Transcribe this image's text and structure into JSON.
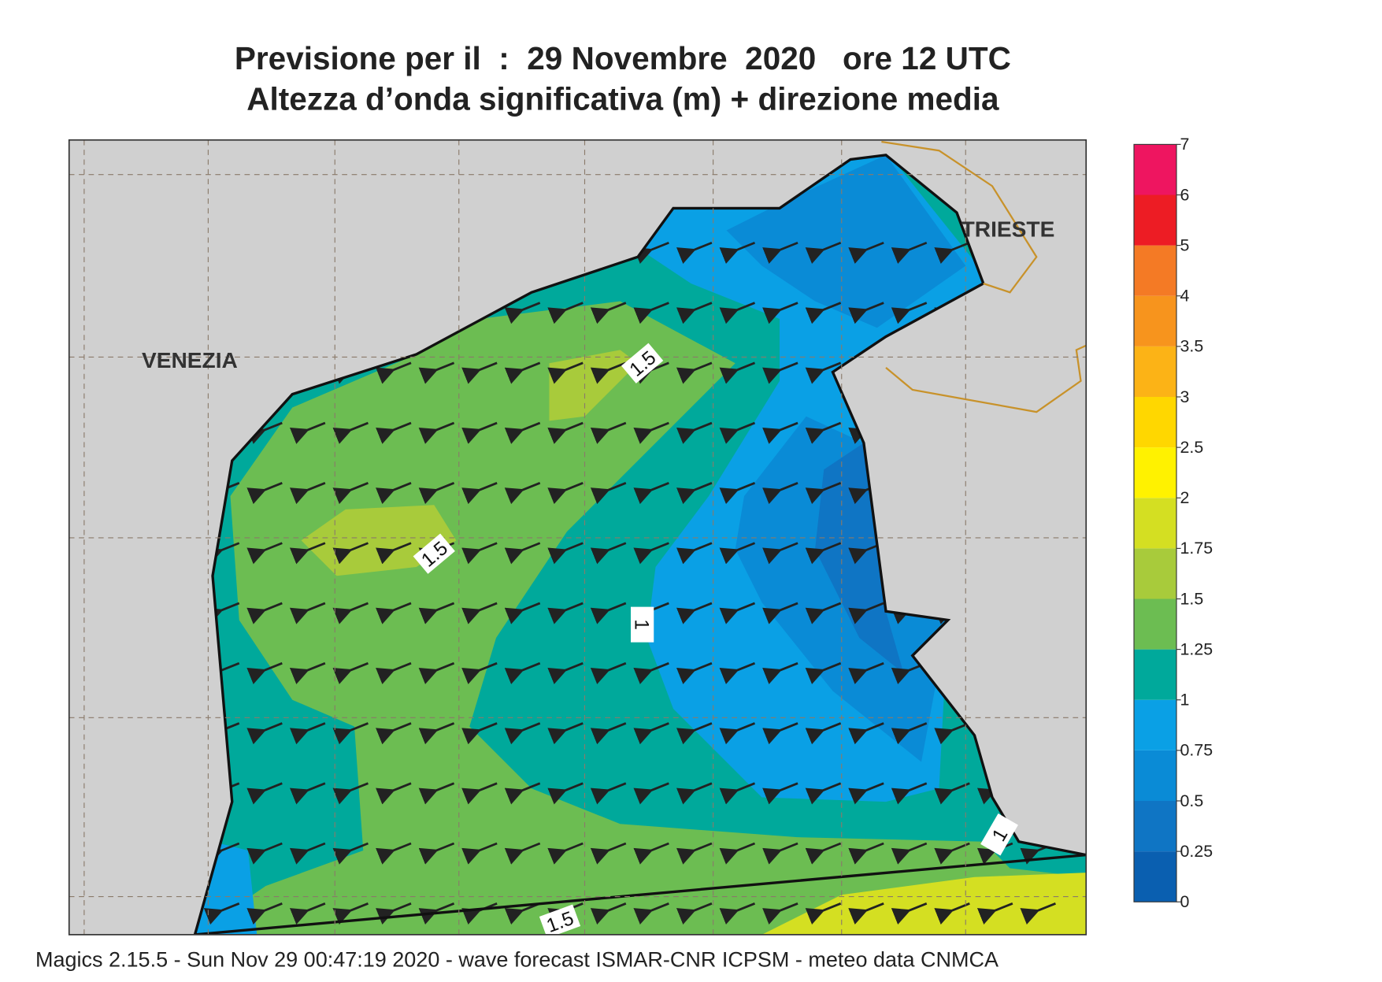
{
  "header": {
    "title_line1": "Previsione per il  :  29 Novembre  2020   ore 12 UTC",
    "title_line2": "Altezza d’onda significativa (m) + direzione media"
  },
  "map": {
    "place_labels": [
      "VENEZIA",
      "TRIESTE"
    ],
    "contour_labels": [
      "1.5",
      "1.5",
      "1",
      "1",
      "1.5"
    ]
  },
  "legend": {
    "levels": [
      0,
      0.25,
      0.5,
      0.75,
      1,
      1.25,
      1.5,
      1.75,
      2,
      2.5,
      3,
      3.5,
      4,
      5,
      6,
      7
    ],
    "colors": [
      "#0a5fb0",
      "#0f75c4",
      "#0a8bd6",
      "#0aa0e5",
      "#00a99b",
      "#6cbd52",
      "#a8cb3b",
      "#d4df22",
      "#fff200",
      "#ffd700",
      "#fcb316",
      "#f7941d",
      "#f47a25",
      "#ed1c24",
      "#ee1560"
    ]
  },
  "footer": "Magics 2.15.5 - Sun Nov 29 00:47:19 2020 - wave forecast  ISMAR-CNR  ICPSM - meteo data   CNMCA"
}
